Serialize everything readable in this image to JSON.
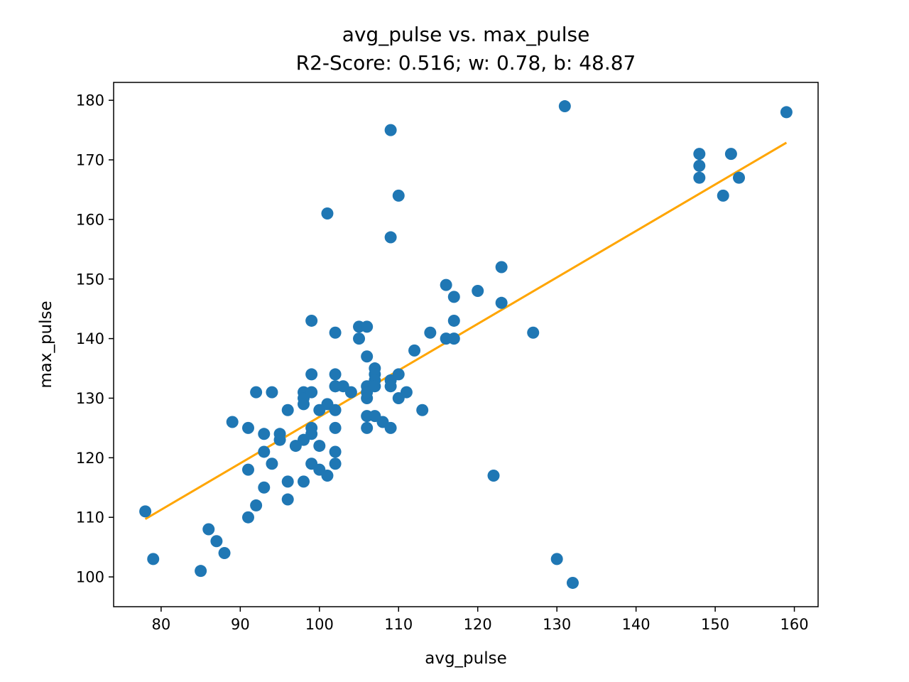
{
  "chart_data": {
    "type": "scatter",
    "title": "avg_pulse vs. max_pulse",
    "subtitle": "R2-Score: 0.516; w: 0.78, b: 48.87",
    "xlabel": "avg_pulse",
    "ylabel": "max_pulse",
    "xlim": [
      74,
      163
    ],
    "ylim": [
      95,
      183
    ],
    "xticks": [
      80,
      90,
      100,
      110,
      120,
      130,
      140,
      150,
      160
    ],
    "yticks": [
      100,
      110,
      120,
      130,
      140,
      150,
      160,
      170,
      180
    ],
    "grid": false,
    "colors": {
      "points": "#1f77b4",
      "fit_line": "#ffa500"
    },
    "series": [
      {
        "x": [
          78,
          79,
          85,
          86,
          87,
          88,
          89,
          91,
          91,
          91,
          92,
          92,
          93,
          93,
          93,
          94,
          94,
          95,
          95,
          96,
          96,
          96,
          97,
          98,
          98,
          98,
          98,
          98,
          99,
          99,
          99,
          99,
          99,
          99,
          100,
          100,
          100,
          101,
          101,
          101,
          102,
          102,
          102,
          102,
          102,
          102,
          102,
          102,
          103,
          104,
          105,
          105,
          106,
          106,
          106,
          106,
          106,
          106,
          106,
          107,
          107,
          107,
          107,
          107,
          108,
          109,
          109,
          109,
          109,
          109,
          110,
          110,
          110,
          111,
          112,
          113,
          114,
          116,
          116,
          117,
          117,
          117,
          120,
          122,
          123,
          123,
          127,
          130,
          131,
          132,
          148,
          148,
          148,
          151,
          152,
          153,
          159
        ],
        "y": [
          111,
          103,
          101,
          108,
          106,
          104,
          126,
          125,
          118,
          110,
          131,
          112,
          124,
          121,
          115,
          131,
          119,
          124,
          123,
          128,
          116,
          113,
          122,
          131,
          130,
          129,
          123,
          116,
          143,
          134,
          131,
          125,
          124,
          119,
          128,
          122,
          118,
          161,
          129,
          117,
          141,
          134,
          132,
          128,
          125,
          121,
          119,
          132,
          132,
          131,
          142,
          140,
          142,
          137,
          132,
          130,
          127,
          125,
          131,
          135,
          134,
          133,
          132,
          127,
          126,
          175,
          157,
          133,
          132,
          125,
          164,
          134,
          130,
          131,
          138,
          128,
          141,
          149,
          140,
          147,
          143,
          140,
          148,
          117,
          152,
          146,
          141,
          103,
          179,
          99,
          171,
          169,
          167,
          164,
          171,
          167,
          178
        ]
      }
    ],
    "fit_line": {
      "w": 0.78,
      "b": 48.87,
      "x_range": [
        78,
        159
      ]
    }
  }
}
